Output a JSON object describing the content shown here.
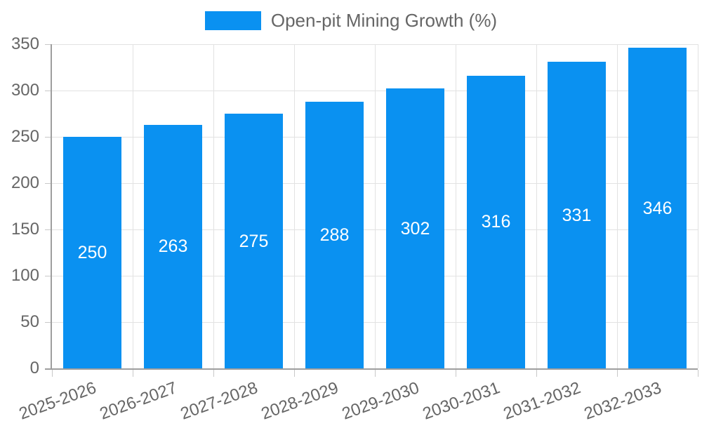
{
  "chart_data": {
    "type": "bar",
    "title": "",
    "legend": {
      "position": "top",
      "label": "Open-pit Mining Growth (%)"
    },
    "categories": [
      "2025-2026",
      "2026-2027",
      "2027-2028",
      "2028-2029",
      "2029-2030",
      "2030-2031",
      "2031-2032",
      "2032-2033"
    ],
    "series": [
      {
        "name": "Open-pit Mining Growth (%)",
        "values": [
          250,
          263,
          275,
          288,
          302,
          316,
          331,
          346
        ]
      }
    ],
    "value_labels": [
      "250",
      "263",
      "275",
      "288",
      "302",
      "316",
      "331",
      "346"
    ],
    "xlabel": "",
    "ylabel": "",
    "ylim": [
      0,
      350
    ],
    "yticks": [
      0,
      50,
      100,
      150,
      200,
      250,
      300,
      350
    ],
    "grid": true,
    "x_tick_rotation_deg": -20,
    "colors": {
      "bar": "#0a91f1",
      "tick_text": "#666666",
      "legend_text": "#666666",
      "value_label_text": "#ffffff",
      "gridline": "#e2e2e2",
      "axis_line": "#9e9e9e",
      "tick_mark": "#c8c8c8",
      "background": "#ffffff"
    }
  }
}
